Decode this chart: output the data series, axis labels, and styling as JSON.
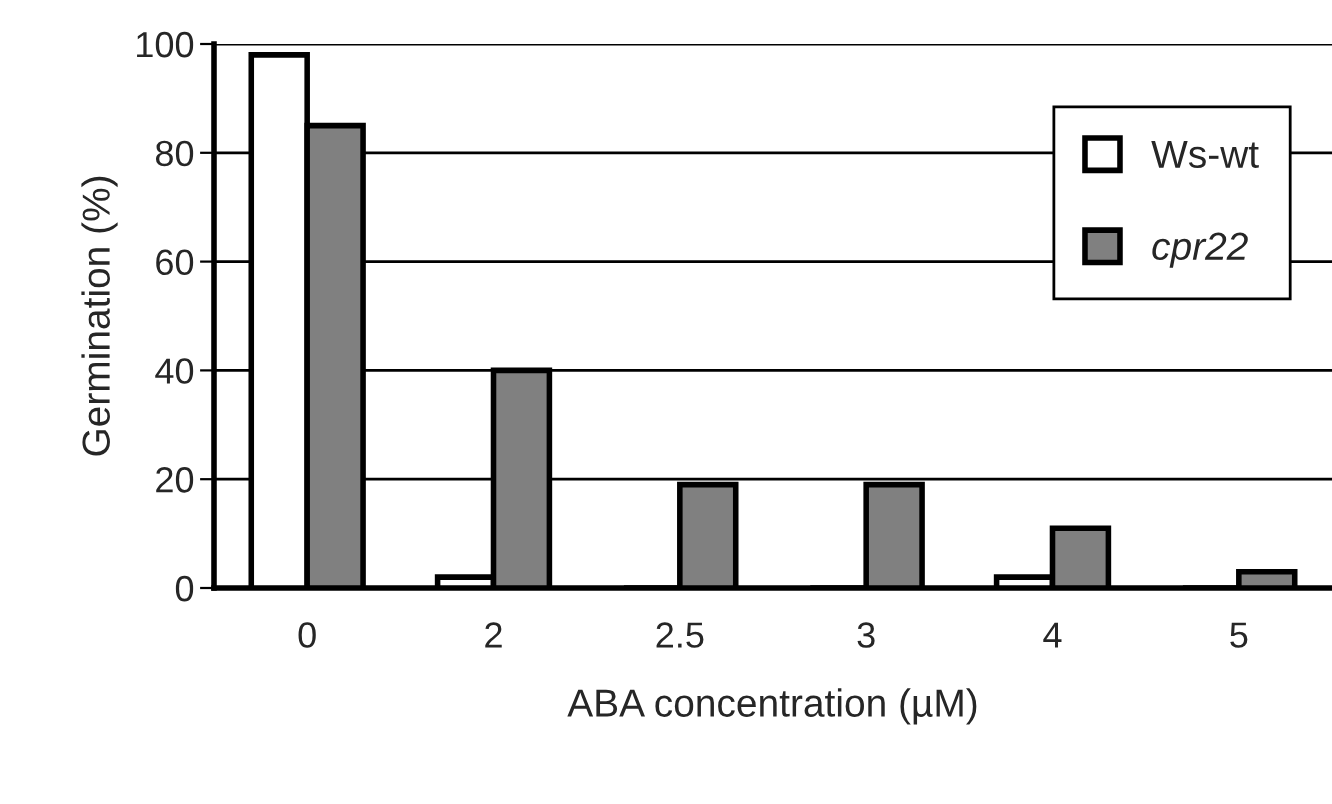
{
  "chart_data": {
    "type": "bar",
    "xlabel": "ABA concentration (µM)",
    "ylabel": "Germination (%)",
    "categories": [
      "0",
      "2",
      "2.5",
      "3",
      "4",
      "5"
    ],
    "series": [
      {
        "name": "Ws-wt",
        "color": "#ffffff",
        "values": [
          98,
          2,
          0,
          0,
          2,
          0
        ]
      },
      {
        "name": "cpr22",
        "color": "#808080",
        "values": [
          85,
          40,
          19,
          19,
          11,
          3
        ]
      }
    ],
    "ylim": [
      0,
      100
    ],
    "yticks": [
      0,
      20,
      40,
      60,
      80,
      100
    ],
    "grid": "y",
    "legend": "top right"
  }
}
